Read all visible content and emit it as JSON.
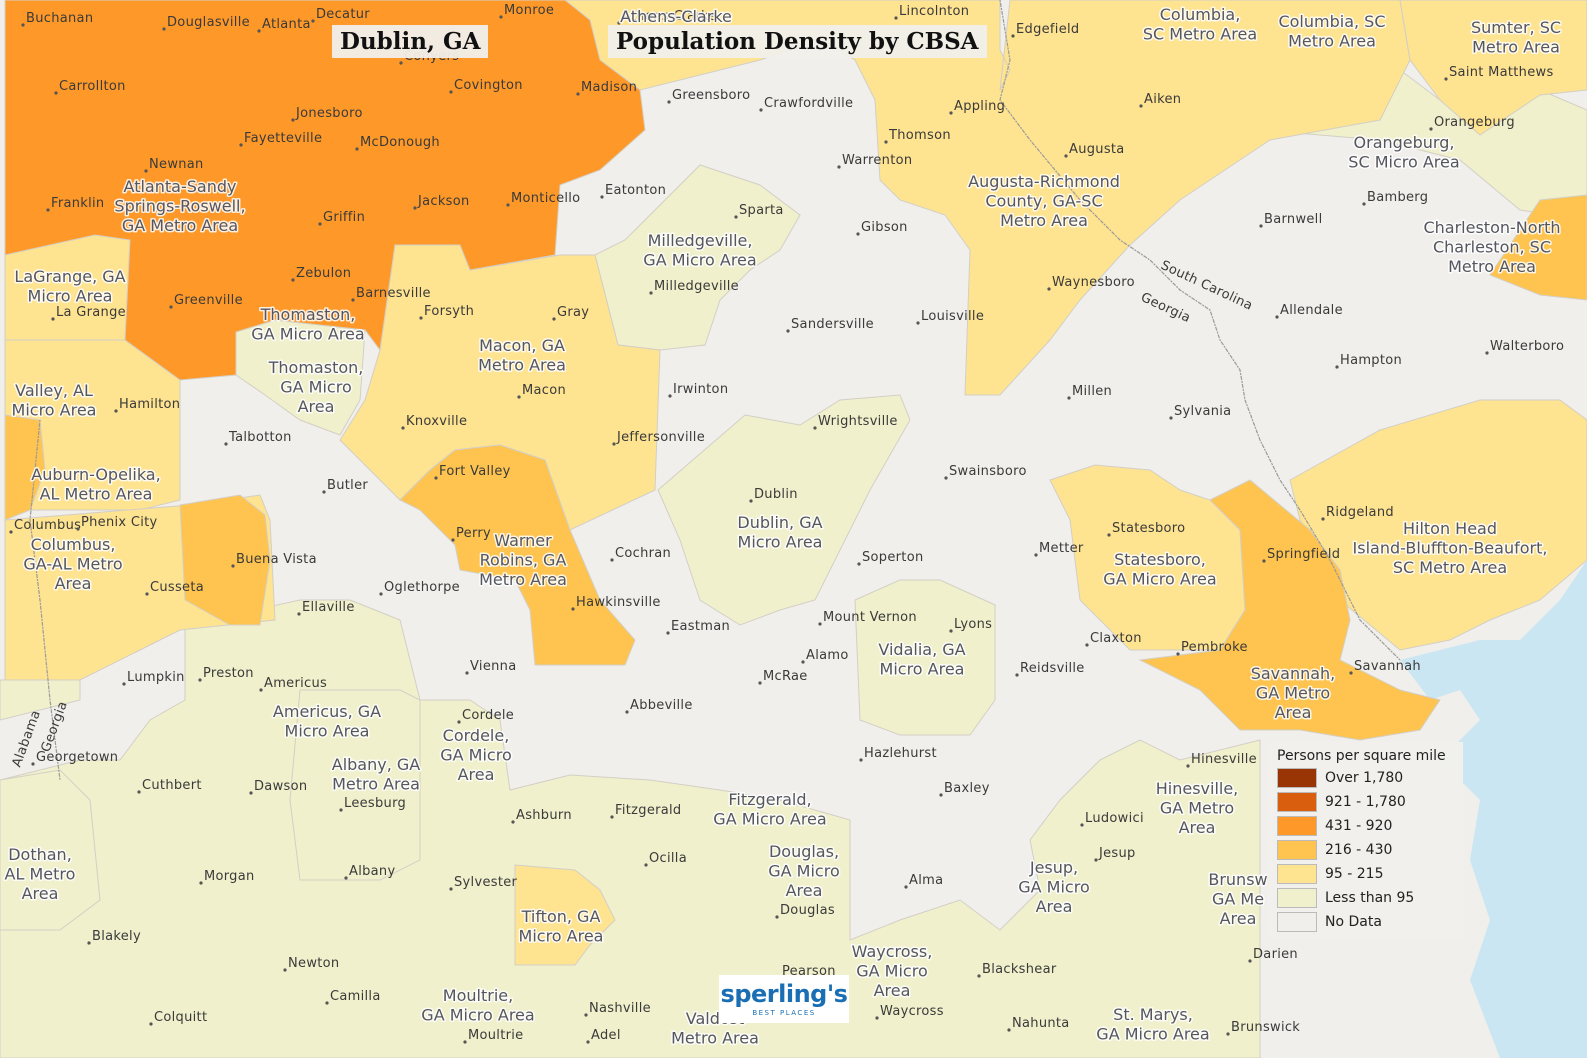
{
  "titles": {
    "location": "Dublin, GA",
    "map_title": "Population Density by CBSA"
  },
  "legend": {
    "title": "Persons per square mile",
    "items": [
      {
        "label": "Over 1,780",
        "color": "#993404"
      },
      {
        "label": "921 - 1,780",
        "color": "#d95f0e"
      },
      {
        "label": "431 - 920",
        "color": "#fe9929"
      },
      {
        "label": "216 - 430",
        "color": "#fec44f"
      },
      {
        "label": "95 - 215",
        "color": "#fee391"
      },
      {
        "label": "Less than 95",
        "color": "#f0f0cc"
      },
      {
        "label": "No Data",
        "color": "#f1efeb"
      }
    ]
  },
  "logo": {
    "main": "sperling's",
    "sub": "BEST PLACES"
  },
  "state_labels": [
    "South Carolina",
    "Georgia",
    "Alabama",
    "Georgia"
  ],
  "cbsa_labels": [
    {
      "text": "Atlanta-Sandy Springs-Roswell, GA Metro Area",
      "lines": [
        "Atlanta-Sandy",
        "Springs-Roswell,",
        "GA Metro Area"
      ]
    },
    {
      "text": "Athens-Clarke",
      "lines": [
        "Athens-Clarke"
      ]
    },
    {
      "text": "Columbia, SC Metro Area",
      "lines": [
        "Columbia,",
        "SC Metro Area"
      ]
    },
    {
      "text": "Columbia, SC Metro Area",
      "lines": [
        "Columbia, SC",
        "Metro Area"
      ]
    },
    {
      "text": "Sumter, SC Metro Area",
      "lines": [
        "Sumter, SC",
        "Metro Area"
      ]
    },
    {
      "text": "Orangeburg, SC Micro Area",
      "lines": [
        "Orangeburg,",
        "SC Micro Area"
      ]
    },
    {
      "text": "Charleston-North Charleston, SC Metro Area",
      "lines": [
        "Charleston-North",
        "Charleston, SC",
        "Metro Area"
      ]
    },
    {
      "text": "Augusta-Richmond County, GA-SC Metro Area",
      "lines": [
        "Augusta-Richmond",
        "County, GA-SC",
        "Metro Area"
      ]
    },
    {
      "text": "Milledgeville, GA Micro Area",
      "lines": [
        "Milledgeville,",
        "GA Micro Area"
      ]
    },
    {
      "text": "LaGrange, GA Micro Area",
      "lines": [
        "LaGrange, GA",
        "Micro Area"
      ]
    },
    {
      "text": "Thomaston, GA Micro Area",
      "lines": [
        "Thomaston,",
        "GA Micro Area"
      ]
    },
    {
      "text": "Thomaston, GA Micro Area",
      "lines": [
        "Thomaston,",
        "GA Micro",
        "Area"
      ]
    },
    {
      "text": "Macon, GA Metro Area",
      "lines": [
        "Macon, GA",
        "Metro Area"
      ]
    },
    {
      "text": "Valley, AL Micro Area",
      "lines": [
        "Valley, AL",
        "Micro Area"
      ]
    },
    {
      "text": "Auburn-Opelika, AL Metro Area",
      "lines": [
        "Auburn-Opelika,",
        "AL Metro Area"
      ]
    },
    {
      "text": "Columbus, GA-AL Metro Area",
      "lines": [
        "Columbus,",
        "GA-AL Metro",
        "Area"
      ]
    },
    {
      "text": "Warner Robins, GA Metro Area",
      "lines": [
        "Warner",
        "Robins, GA",
        "Metro Area"
      ]
    },
    {
      "text": "Dublin, GA Micro Area",
      "lines": [
        "Dublin, GA",
        "Micro Area"
      ]
    },
    {
      "text": "Statesboro, GA Micro Area",
      "lines": [
        "Statesboro,",
        "GA Micro Area"
      ]
    },
    {
      "text": "Hilton Head Island-Bluffton-Beaufort, SC Metro Area",
      "lines": [
        "Hilton Head",
        "Island-Bluffton-Beaufort,",
        "SC Metro Area"
      ]
    },
    {
      "text": "Savannah, GA Metro Area",
      "lines": [
        "Savannah,",
        "GA Metro",
        "Area"
      ]
    },
    {
      "text": "Vidalia, GA Micro Area",
      "lines": [
        "Vidalia, GA",
        "Micro Area"
      ]
    },
    {
      "text": "Americus, GA Micro Area",
      "lines": [
        "Americus, GA",
        "Micro Area"
      ]
    },
    {
      "text": "Cordele, GA Micro Area",
      "lines": [
        "Cordele,",
        "GA Micro",
        "Area"
      ]
    },
    {
      "text": "Albany, GA Metro Area",
      "lines": [
        "Albany, GA",
        "Metro Area"
      ]
    },
    {
      "text": "Fitzgerald, GA Micro Area",
      "lines": [
        "Fitzgerald,",
        "GA Micro Area"
      ]
    },
    {
      "text": "Hinesville, GA Metro Area",
      "lines": [
        "Hinesville,",
        "GA Metro",
        "Area"
      ]
    },
    {
      "text": "Dothan, AL Metro Area",
      "lines": [
        "Dothan,",
        "AL Metro",
        "Area"
      ]
    },
    {
      "text": "Douglas, GA Micro Area",
      "lines": [
        "Douglas,",
        "GA Micro",
        "Area"
      ]
    },
    {
      "text": "Jesup, GA Micro Area",
      "lines": [
        "Jesup,",
        "GA Micro",
        "Area"
      ]
    },
    {
      "text": "Brunswick, GA Metro Area (partial)",
      "lines": [
        "Brunsw",
        "GA Me",
        "Area"
      ]
    },
    {
      "text": "Tifton, GA Micro Area",
      "lines": [
        "Tifton, GA",
        "Micro Area"
      ]
    },
    {
      "text": "Waycross, GA Micro Area",
      "lines": [
        "Waycross,",
        "GA Micro",
        "Area"
      ]
    },
    {
      "text": "Moultrie, GA Micro Area",
      "lines": [
        "Moultrie,",
        "GA Micro Area"
      ]
    },
    {
      "text": "Valdosta, GA Metro Area (partial)",
      "lines": [
        "Valdost",
        "Metro Area"
      ]
    },
    {
      "text": "St. Marys, GA Micro Area",
      "lines": [
        "St. Marys,",
        "GA Micro Area"
      ]
    }
  ],
  "cities": [
    "Buchanan",
    "Douglasville",
    "Atlanta",
    "Decatur",
    "Monroe",
    "Athens-Clarke",
    "Lincolnton",
    "Edgefield",
    "Carrollton",
    "Conyers",
    "Covington",
    "Madison",
    "Greensboro",
    "Crawfordville",
    "Appling",
    "Aiken",
    "Saint Matthews",
    "Jonesboro",
    "Thomson",
    "Augusta",
    "Orangeburg",
    "Fayetteville",
    "McDonough",
    "Warrenton",
    "Newnan",
    "Franklin",
    "Jackson",
    "Monticello",
    "Eatonton",
    "Sparta",
    "Gibson",
    "Bamberg",
    "Griffin",
    "Barnwell",
    "Zebulon",
    "Barnesville",
    "Milledgeville",
    "Waynesboro",
    "Greenville",
    "Forsyth",
    "Gray",
    "Louisville",
    "Allendale",
    "La Grange",
    "Sandersville",
    "Walterboro",
    "Hampton",
    "Macon",
    "Irwinton",
    "Millen",
    "Hamilton",
    "Sylvania",
    "Wrightsville",
    "Knoxville",
    "Talbotton",
    "Jeffersonville",
    "Swainsboro",
    "Fort Valley",
    "Butler",
    "Dublin",
    "Ridgeland",
    "Statesboro",
    "Columbus",
    "Phenix City",
    "Perry",
    "Cochran",
    "Metter",
    "Springfield",
    "Buena Vista",
    "Soperton",
    "Cusseta",
    "Oglethorpe",
    "Hawkinsville",
    "Ellaville",
    "Mount Vernon",
    "Lyons",
    "Eastman",
    "Claxton",
    "Pembroke",
    "Alamo",
    "Savannah",
    "Vienna",
    "Reidsville",
    "Lumpkin",
    "Preston",
    "McRae",
    "Americus",
    "Abbeville",
    "Cordele",
    "Hazlehurst",
    "Hinesville",
    "Georgetown",
    "Cuthbert",
    "Dawson",
    "Baxley",
    "Leesburg",
    "Ashburn",
    "Fitzgerald",
    "Ludowici",
    "Jesup",
    "Ocilla",
    "Morgan",
    "Albany",
    "Sylvester",
    "Alma",
    "Douglas",
    "Blakely",
    "Newton",
    "Blackshear",
    "Darien",
    "Camilla",
    "Pearson",
    "Nashville",
    "Waycross",
    "Colquitt",
    "Adel",
    "Moultrie",
    "Nahunta",
    "Brunswick"
  ]
}
